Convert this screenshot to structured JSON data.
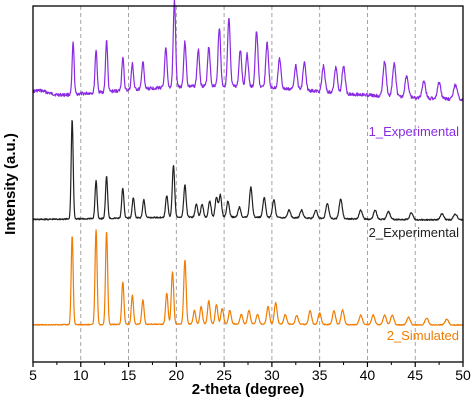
{
  "chart_data": {
    "type": "line",
    "title": "",
    "xlabel": "2-theta (degree)",
    "ylabel": "Intensity (a.u.)",
    "xlim": [
      5,
      50
    ],
    "x_ticks": [
      "5",
      "10",
      "15",
      "20",
      "25",
      "30",
      "35",
      "40",
      "45",
      "50"
    ],
    "grid": {
      "vertical_dashed": true,
      "values": [
        10,
        15,
        20,
        25,
        30,
        35,
        40,
        45
      ]
    },
    "y_ticks_labeled": false,
    "series": [
      {
        "name": "1_Experimental",
        "color": "#8a2be2",
        "label_position": "right, above trace",
        "peaks": [
          [
            9.2,
            0.6
          ],
          [
            11.6,
            0.5
          ],
          [
            12.7,
            0.6
          ],
          [
            14.4,
            0.38
          ],
          [
            15.4,
            0.3
          ],
          [
            16.5,
            0.32
          ],
          [
            18.9,
            0.45
          ],
          [
            19.8,
            1.0
          ],
          [
            20.9,
            0.52
          ],
          [
            22.3,
            0.42
          ],
          [
            23.4,
            0.46
          ],
          [
            24.5,
            0.68
          ],
          [
            25.5,
            0.78
          ],
          [
            26.7,
            0.42
          ],
          [
            27.4,
            0.38
          ],
          [
            28.4,
            0.65
          ],
          [
            29.5,
            0.52
          ],
          [
            30.8,
            0.35
          ],
          [
            32.5,
            0.28
          ],
          [
            33.4,
            0.32
          ],
          [
            35.4,
            0.3
          ],
          [
            36.7,
            0.3
          ],
          [
            37.5,
            0.32
          ],
          [
            41.8,
            0.4
          ],
          [
            42.8,
            0.38
          ],
          [
            44.1,
            0.25
          ],
          [
            45.9,
            0.2
          ],
          [
            47.5,
            0.18
          ],
          [
            49.2,
            0.16
          ]
        ]
      },
      {
        "name": "2_Experimental",
        "color": "#222222",
        "label_position": "right, below trace",
        "peaks": [
          [
            9.1,
            1.0
          ],
          [
            11.6,
            0.38
          ],
          [
            12.7,
            0.42
          ],
          [
            14.4,
            0.3
          ],
          [
            15.5,
            0.2
          ],
          [
            16.6,
            0.18
          ],
          [
            19.0,
            0.22
          ],
          [
            19.7,
            0.52
          ],
          [
            20.9,
            0.32
          ],
          [
            22.1,
            0.13
          ],
          [
            22.7,
            0.13
          ],
          [
            23.5,
            0.16
          ],
          [
            24.2,
            0.2
          ],
          [
            24.6,
            0.22
          ],
          [
            25.4,
            0.16
          ],
          [
            26.6,
            0.1
          ],
          [
            27.8,
            0.3
          ],
          [
            29.2,
            0.2
          ],
          [
            30.2,
            0.18
          ],
          [
            31.8,
            0.08
          ],
          [
            33.1,
            0.08
          ],
          [
            34.6,
            0.08
          ],
          [
            35.8,
            0.15
          ],
          [
            37.2,
            0.2
          ],
          [
            39.3,
            0.09
          ],
          [
            40.8,
            0.09
          ],
          [
            42.2,
            0.08
          ],
          [
            44.6,
            0.07
          ],
          [
            47.8,
            0.06
          ],
          [
            49.2,
            0.06
          ]
        ]
      },
      {
        "name": "2_Simulated",
        "color": "#f07c00",
        "label_position": "right, above trace",
        "peaks": [
          [
            9.1,
            0.92
          ],
          [
            11.6,
            0.98
          ],
          [
            12.7,
            0.96
          ],
          [
            14.4,
            0.44
          ],
          [
            15.4,
            0.3
          ],
          [
            16.5,
            0.25
          ],
          [
            19.0,
            0.32
          ],
          [
            19.6,
            0.54
          ],
          [
            20.9,
            0.66
          ],
          [
            21.9,
            0.14
          ],
          [
            22.6,
            0.18
          ],
          [
            23.4,
            0.24
          ],
          [
            24.2,
            0.2
          ],
          [
            24.8,
            0.16
          ],
          [
            25.6,
            0.14
          ],
          [
            26.8,
            0.1
          ],
          [
            27.6,
            0.14
          ],
          [
            28.5,
            0.1
          ],
          [
            29.6,
            0.18
          ],
          [
            30.4,
            0.22
          ],
          [
            31.4,
            0.1
          ],
          [
            32.6,
            0.09
          ],
          [
            34.0,
            0.14
          ],
          [
            35.0,
            0.12
          ],
          [
            36.5,
            0.14
          ],
          [
            37.4,
            0.15
          ],
          [
            39.3,
            0.1
          ],
          [
            40.6,
            0.1
          ],
          [
            41.8,
            0.1
          ],
          [
            42.6,
            0.1
          ],
          [
            44.3,
            0.08
          ],
          [
            46.2,
            0.07
          ],
          [
            48.3,
            0.06
          ]
        ]
      }
    ]
  }
}
